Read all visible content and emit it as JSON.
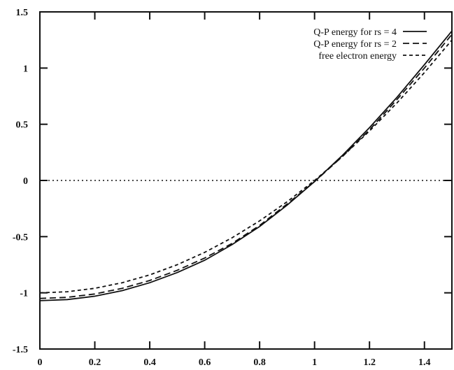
{
  "chart_data": {
    "type": "line",
    "title": "",
    "xlabel": "",
    "ylabel": "",
    "xlim": [
      0,
      1.5
    ],
    "ylim": [
      -1.5,
      1.5
    ],
    "x_ticks": [
      "0",
      "0.2",
      "0.4",
      "0.6",
      "0.8",
      "1",
      "1.2",
      "1.4"
    ],
    "y_ticks": [
      "-1.5",
      "-1",
      "-0.5",
      "0",
      "0.5",
      "1",
      "1.5"
    ],
    "x_tick_values": [
      0,
      0.2,
      0.4,
      0.6,
      0.8,
      1.0,
      1.2,
      1.4
    ],
    "y_tick_values": [
      -1.5,
      -1,
      -0.5,
      0,
      0.5,
      1,
      1.5
    ],
    "grid": false,
    "legend_position": "top-right",
    "reference_line": {
      "y": 0,
      "style": "dotted"
    },
    "x": [
      0,
      0.1,
      0.2,
      0.3,
      0.4,
      0.5,
      0.6,
      0.7,
      0.8,
      0.9,
      1.0,
      1.1,
      1.2,
      1.3,
      1.4,
      1.5
    ],
    "series": [
      {
        "name": "Q-P energy for rs = 4",
        "style": "solid",
        "values": [
          -1.07,
          -1.06,
          -1.03,
          -0.98,
          -0.91,
          -0.82,
          -0.71,
          -0.57,
          -0.41,
          -0.22,
          -0.01,
          0.22,
          0.47,
          0.74,
          1.03,
          1.33
        ]
      },
      {
        "name": "Q-P energy for rs = 2",
        "style": "dashed",
        "values": [
          -1.05,
          -1.04,
          -1.01,
          -0.96,
          -0.89,
          -0.8,
          -0.69,
          -0.56,
          -0.4,
          -0.21,
          -0.01,
          0.21,
          0.45,
          0.72,
          1.0,
          1.3
        ]
      },
      {
        "name": "free electron energy",
        "style": "dotted-dash",
        "values": [
          -1.0,
          -0.99,
          -0.96,
          -0.91,
          -0.84,
          -0.75,
          -0.64,
          -0.51,
          -0.36,
          -0.19,
          0.0,
          0.21,
          0.44,
          0.69,
          0.96,
          1.25
        ]
      }
    ]
  }
}
